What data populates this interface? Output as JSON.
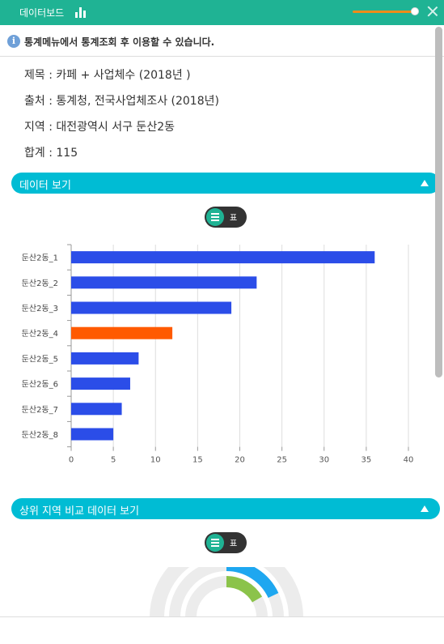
{
  "topbar": {
    "title": "데이터보드",
    "icon": "bar-chart-icon",
    "slider_level": 0.9,
    "close_icon": "close-icon"
  },
  "notice": {
    "icon": "info-icon",
    "icon_glyph": "i",
    "text": "통계메뉴에서 통계조회 후 이용할 수 있습니다."
  },
  "meta": {
    "title": "제목 : 카페 + 사업체수 (2018년 )",
    "source": "출처 : 통계청, 전국사업체조사 (2018년)",
    "region": "지역 : 대전광역시 서구 둔산2동",
    "total": "합계 : 115"
  },
  "section1": {
    "label": "데이터 보기"
  },
  "section2": {
    "label": "상위 지역 비교 데이터 보기"
  },
  "toggle": {
    "table_label": "표"
  },
  "colors": {
    "bar": "#2b4de8",
    "highlight": "#ff5a00",
    "accent": "#00bcd4",
    "topbar": "#1fb394"
  },
  "chart_data": {
    "type": "bar",
    "orientation": "horizontal",
    "categories": [
      "둔산2동_1",
      "둔산2동_2",
      "둔산2동_3",
      "둔산2동_4",
      "둔산2동_5",
      "둔산2동_6",
      "둔산2동_7",
      "둔산2동_8"
    ],
    "values": [
      36,
      22,
      19,
      12,
      8,
      7,
      6,
      5
    ],
    "highlight_index": 3,
    "xlim": [
      0,
      40
    ],
    "ticks": [
      0,
      5,
      10,
      15,
      20,
      25,
      30,
      35,
      40
    ],
    "grid": true
  }
}
